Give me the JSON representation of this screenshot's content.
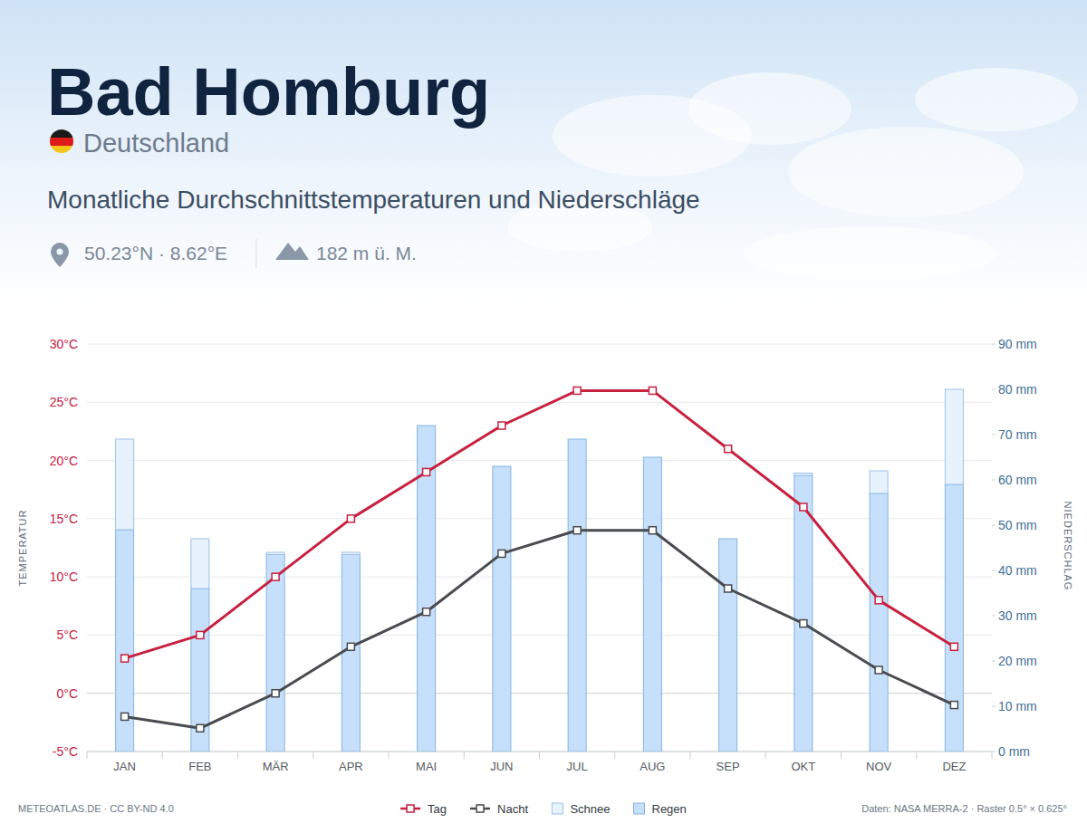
{
  "chart_data": {
    "type": "bar",
    "title": "Bad Homburg",
    "subtitle": "Monatliche Durchschnittstemperaturen und Niederschläge",
    "annotations": [
      "Deutschland",
      "50.23°N · 8.62°E",
      "182 m ü. M.",
      "METEOATLAS.DE · CC BY-ND 4.0",
      "Daten: NASA MERRA-2 · Raster 0.5° × 0.625°"
    ],
    "ylabel": "TEMPERATUR",
    "y2label": "NIEDERSCHLAG",
    "categories": [
      "JAN",
      "FEB",
      "MÄR",
      "APR",
      "MAI",
      "JUN",
      "JUL",
      "AUG",
      "SEP",
      "OKT",
      "NOV",
      "DEZ"
    ],
    "series": [
      {
        "name": "Tag",
        "type": "line",
        "color": "#c8203f",
        "marker": "square",
        "values": [
          3,
          5,
          10,
          15,
          19,
          23,
          26,
          26,
          21,
          16,
          8,
          4
        ]
      },
      {
        "name": "Nacht",
        "type": "line",
        "color": "#4a4b50",
        "marker": "square",
        "values": [
          -2,
          -3,
          0,
          4,
          7,
          12,
          14,
          14,
          9,
          6,
          2,
          -1
        ]
      },
      {
        "name": "Schnee",
        "type": "bar",
        "color": "#e8f2fd",
        "axis": "y2",
        "values": [
          20,
          11,
          0.5,
          0.5,
          0,
          0,
          0,
          0,
          0,
          0.5,
          5,
          21
        ]
      },
      {
        "name": "Regen",
        "type": "bar",
        "color": "#c6dffa",
        "axis": "y2",
        "values": [
          49,
          36,
          43.5,
          43.5,
          72,
          63,
          69,
          65,
          47,
          61,
          57,
          59
        ]
      }
    ],
    "stacked": true,
    "ylim": [
      -5,
      30
    ],
    "yticks": [
      {
        "value": -5,
        "label": "-5°C"
      },
      {
        "value": 0,
        "label": "0°C"
      },
      {
        "value": 5,
        "label": "5°C"
      },
      {
        "value": 10,
        "label": "10°C"
      },
      {
        "value": 15,
        "label": "15°C"
      },
      {
        "value": 20,
        "label": "20°C"
      },
      {
        "value": 25,
        "label": "25°C"
      },
      {
        "value": 30,
        "label": "30°C"
      }
    ],
    "y2lim": [
      0,
      90
    ],
    "y2ticks": [
      {
        "value": 0,
        "label": "0 mm"
      },
      {
        "value": 10,
        "label": "10 mm"
      },
      {
        "value": 20,
        "label": "20 mm"
      },
      {
        "value": 30,
        "label": "30 mm"
      },
      {
        "value": 40,
        "label": "40 mm"
      },
      {
        "value": 50,
        "label": "50 mm"
      },
      {
        "value": 60,
        "label": "60 mm"
      },
      {
        "value": 70,
        "label": "70 mm"
      },
      {
        "value": 80,
        "label": "80 mm"
      },
      {
        "value": 90,
        "label": "90 mm"
      }
    ],
    "grid": true,
    "legend": "bottom"
  }
}
